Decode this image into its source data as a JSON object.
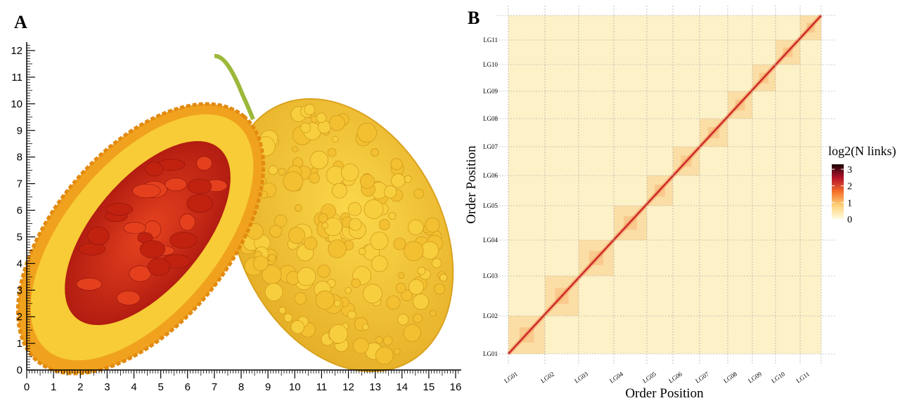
{
  "panel_a": {
    "label": "A",
    "ruler_x_ticks": [
      0,
      1,
      2,
      3,
      4,
      5,
      6,
      7,
      8,
      9,
      10,
      11,
      12,
      13,
      14,
      15,
      16
    ],
    "ruler_y_ticks": [
      0,
      1,
      2,
      3,
      4,
      5,
      6,
      7,
      8,
      9,
      10,
      11,
      12
    ]
  },
  "panel_b": {
    "label": "B",
    "x_label": "Order Position",
    "y_label": "Order Position",
    "groups": [
      "LG01",
      "LG02",
      "LG03",
      "LG04",
      "LG05",
      "LG06",
      "LG07",
      "LG08",
      "LG09",
      "LG10",
      "LG11"
    ],
    "legend_title": "log2(N links)",
    "legend_lim": [
      0,
      3.3
    ],
    "legend_ticks": [
      0,
      1,
      2,
      3
    ]
  }
}
